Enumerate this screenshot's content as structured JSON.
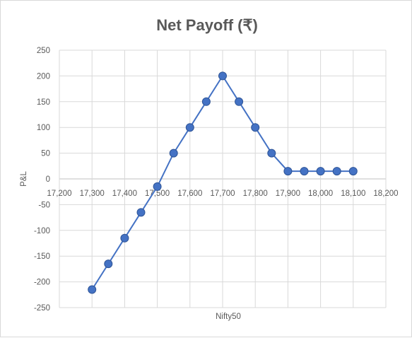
{
  "chart_data": {
    "type": "line",
    "title": "Net Payoff (₹)",
    "xlabel": "Nifty50",
    "ylabel": "P&L",
    "xlim": [
      17200,
      18200
    ],
    "ylim": [
      -250,
      250
    ],
    "x_ticks": [
      "17,200",
      "17,300",
      "17,400",
      "17,500",
      "17,600",
      "17,700",
      "17,800",
      "17,900",
      "18,000",
      "18,100",
      "18,200"
    ],
    "y_ticks": [
      "250",
      "200",
      "150",
      "100",
      "50",
      "0",
      "-50",
      "-100",
      "-150",
      "-200",
      "-250"
    ],
    "grid": true,
    "legend": "none",
    "colors": {
      "series": "#4472c4",
      "marker_edge": "#2f5597",
      "grid": "#d9d9d9",
      "text": "#595959"
    },
    "series": [
      {
        "x": [
          17300,
          17350,
          17400,
          17450,
          17500,
          17550,
          17600,
          17650,
          17700,
          17750,
          17800,
          17850,
          17900,
          17950,
          18000,
          18050,
          18100
        ],
        "values": [
          -215,
          -165,
          -115,
          -65,
          -15,
          50,
          100,
          150,
          200,
          150,
          100,
          50,
          15,
          15,
          15,
          15,
          15
        ]
      }
    ]
  }
}
